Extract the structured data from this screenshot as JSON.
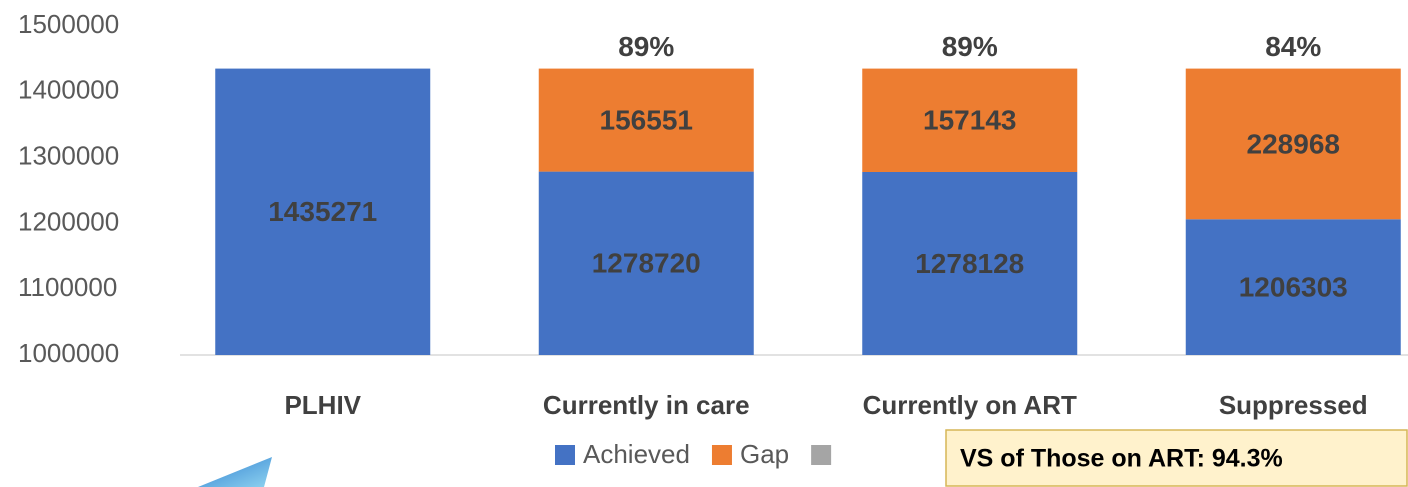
{
  "chart_data": {
    "type": "stacked_bar",
    "categories": [
      "PLHIV",
      "Currently in care",
      "Currently on ART",
      "Suppressed"
    ],
    "series": [
      {
        "name": "Achieved",
        "color": "#4472c4",
        "values": [
          1435271,
          1278720,
          1278128,
          1206303
        ]
      },
      {
        "name": "Gap",
        "color": "#ed7d31",
        "values": [
          null,
          156551,
          157143,
          228968
        ]
      },
      {
        "color": "#a5a5a5",
        "values": [
          null,
          null,
          null,
          null
        ]
      }
    ],
    "top_labels": [
      null,
      "89%",
      "89%",
      "84%"
    ],
    "annotation": "VS of Those on ART:  94.3%",
    "ylim": [
      1000000,
      1500000
    ],
    "yticks": [
      1000000,
      1100000,
      1200000,
      1300000,
      1400000,
      1500000
    ],
    "grid": false
  }
}
